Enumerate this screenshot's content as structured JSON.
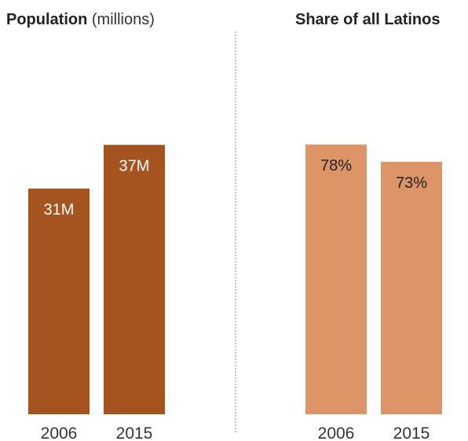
{
  "chart_data": [
    {
      "type": "bar",
      "title": "Population",
      "title_note": "(millions)",
      "categories": [
        "2006",
        "2015"
      ],
      "values": [
        31,
        37
      ],
      "data_labels": [
        "31M",
        "37M"
      ],
      "color": "#a5541f",
      "label_color": "#ffffff",
      "ylim": [
        0,
        47.5
      ]
    },
    {
      "type": "bar",
      "title": "Share of all Latinos",
      "categories": [
        "2006",
        "2015"
      ],
      "values": [
        78,
        73
      ],
      "data_labels": [
        "78%",
        "73%"
      ],
      "color": "#dd9467",
      "label_color": "#222222",
      "ylim": [
        0,
        100
      ]
    }
  ]
}
